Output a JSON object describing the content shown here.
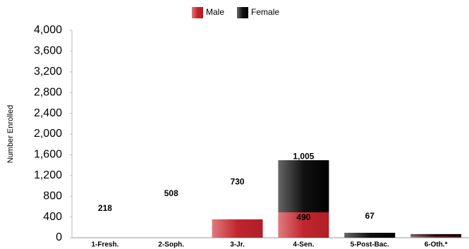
{
  "chart_data": {
    "type": "stacked_bar",
    "y_label": "Number Enrolled",
    "categories": [
      "1-Fresh.",
      "2-Soph.",
      "3-Jr.",
      "4-Sen.",
      "5-Post-Bac.",
      "6-Oth.*"
    ],
    "series": [
      {
        "name": "Male",
        "color": "#c0262d",
        "values": [
          0,
          0,
          354,
          490,
          0,
          20
        ],
        "value_labels": [
          null,
          null,
          null,
          "490",
          null,
          null
        ]
      },
      {
        "name": "Female",
        "color": "#111111",
        "values": [
          0,
          0,
          0,
          1005,
          95,
          50
        ],
        "value_labels": [
          null,
          null,
          null,
          "1,005",
          null,
          null
        ]
      }
    ],
    "annotations": [
      {
        "category": 0,
        "text": "218"
      },
      {
        "category": 1,
        "text": "508"
      },
      {
        "category": 2,
        "text": "730"
      },
      {
        "category": 4,
        "text": "67"
      }
    ],
    "ylim": [
      0,
      4000
    ],
    "yticks": [
      0,
      400,
      800,
      {
        "value": 1200,
        "label": "1,200"
      },
      {
        "value": 1600,
        "label": "1,600"
      },
      {
        "value": 2000,
        "label": "2,000"
      },
      {
        "value": 2400,
        "label": "2,400"
      },
      {
        "value": 2800,
        "label": "2,800"
      },
      {
        "value": 3200,
        "label": "3,200"
      },
      {
        "value": 3600,
        "label": "3,600"
      },
      {
        "value": 4000,
        "label": "4,000"
      }
    ],
    "legend": "top"
  }
}
